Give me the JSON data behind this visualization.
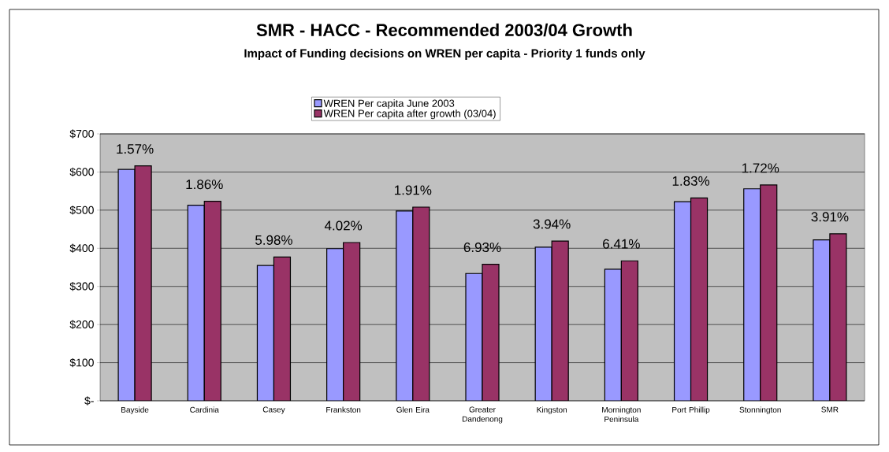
{
  "chart_data": {
    "type": "bar",
    "title": "SMR - HACC - Recommended 2003/04 Growth",
    "subtitle": "Impact of Funding decisions on WREN per capita - Priority 1 funds only",
    "categories": [
      "Bayside",
      "Cardinia",
      "Casey",
      "Frankston",
      "Glen Eira",
      "Greater Dandenong",
      "Kingston",
      "Mornington Peninsula",
      "Port Phillip",
      "Stonnington",
      "SMR"
    ],
    "series": [
      {
        "name": "WREN Per capita June 2003",
        "color": "#9999ff",
        "values": [
          607,
          513,
          355,
          399,
          498,
          334,
          403,
          345,
          522,
          556,
          422
        ]
      },
      {
        "name": "WREN Per capita after growth (03/04)",
        "color": "#993366",
        "values": [
          616,
          523,
          377,
          415,
          508,
          358,
          419,
          367,
          532,
          566,
          438
        ]
      }
    ],
    "ylim": [
      0,
      700
    ],
    "yticks": [
      {
        "value": 0,
        "label": "$-"
      },
      {
        "value": 100,
        "label": "$100"
      },
      {
        "value": 200,
        "label": "$200"
      },
      {
        "value": 300,
        "label": "$300"
      },
      {
        "value": 400,
        "label": "$400"
      },
      {
        "value": 500,
        "label": "$500"
      },
      {
        "value": 600,
        "label": "$600"
      },
      {
        "value": 700,
        "label": "$700"
      }
    ],
    "grid": "y",
    "legend": "top",
    "annotations": [
      "1.57%",
      "1.86%",
      "5.98%",
      "4.02%",
      "1.91%",
      "6.93%",
      "3.94%",
      "6.41%",
      "1.83%",
      "1.72%",
      "3.91%"
    ]
  }
}
